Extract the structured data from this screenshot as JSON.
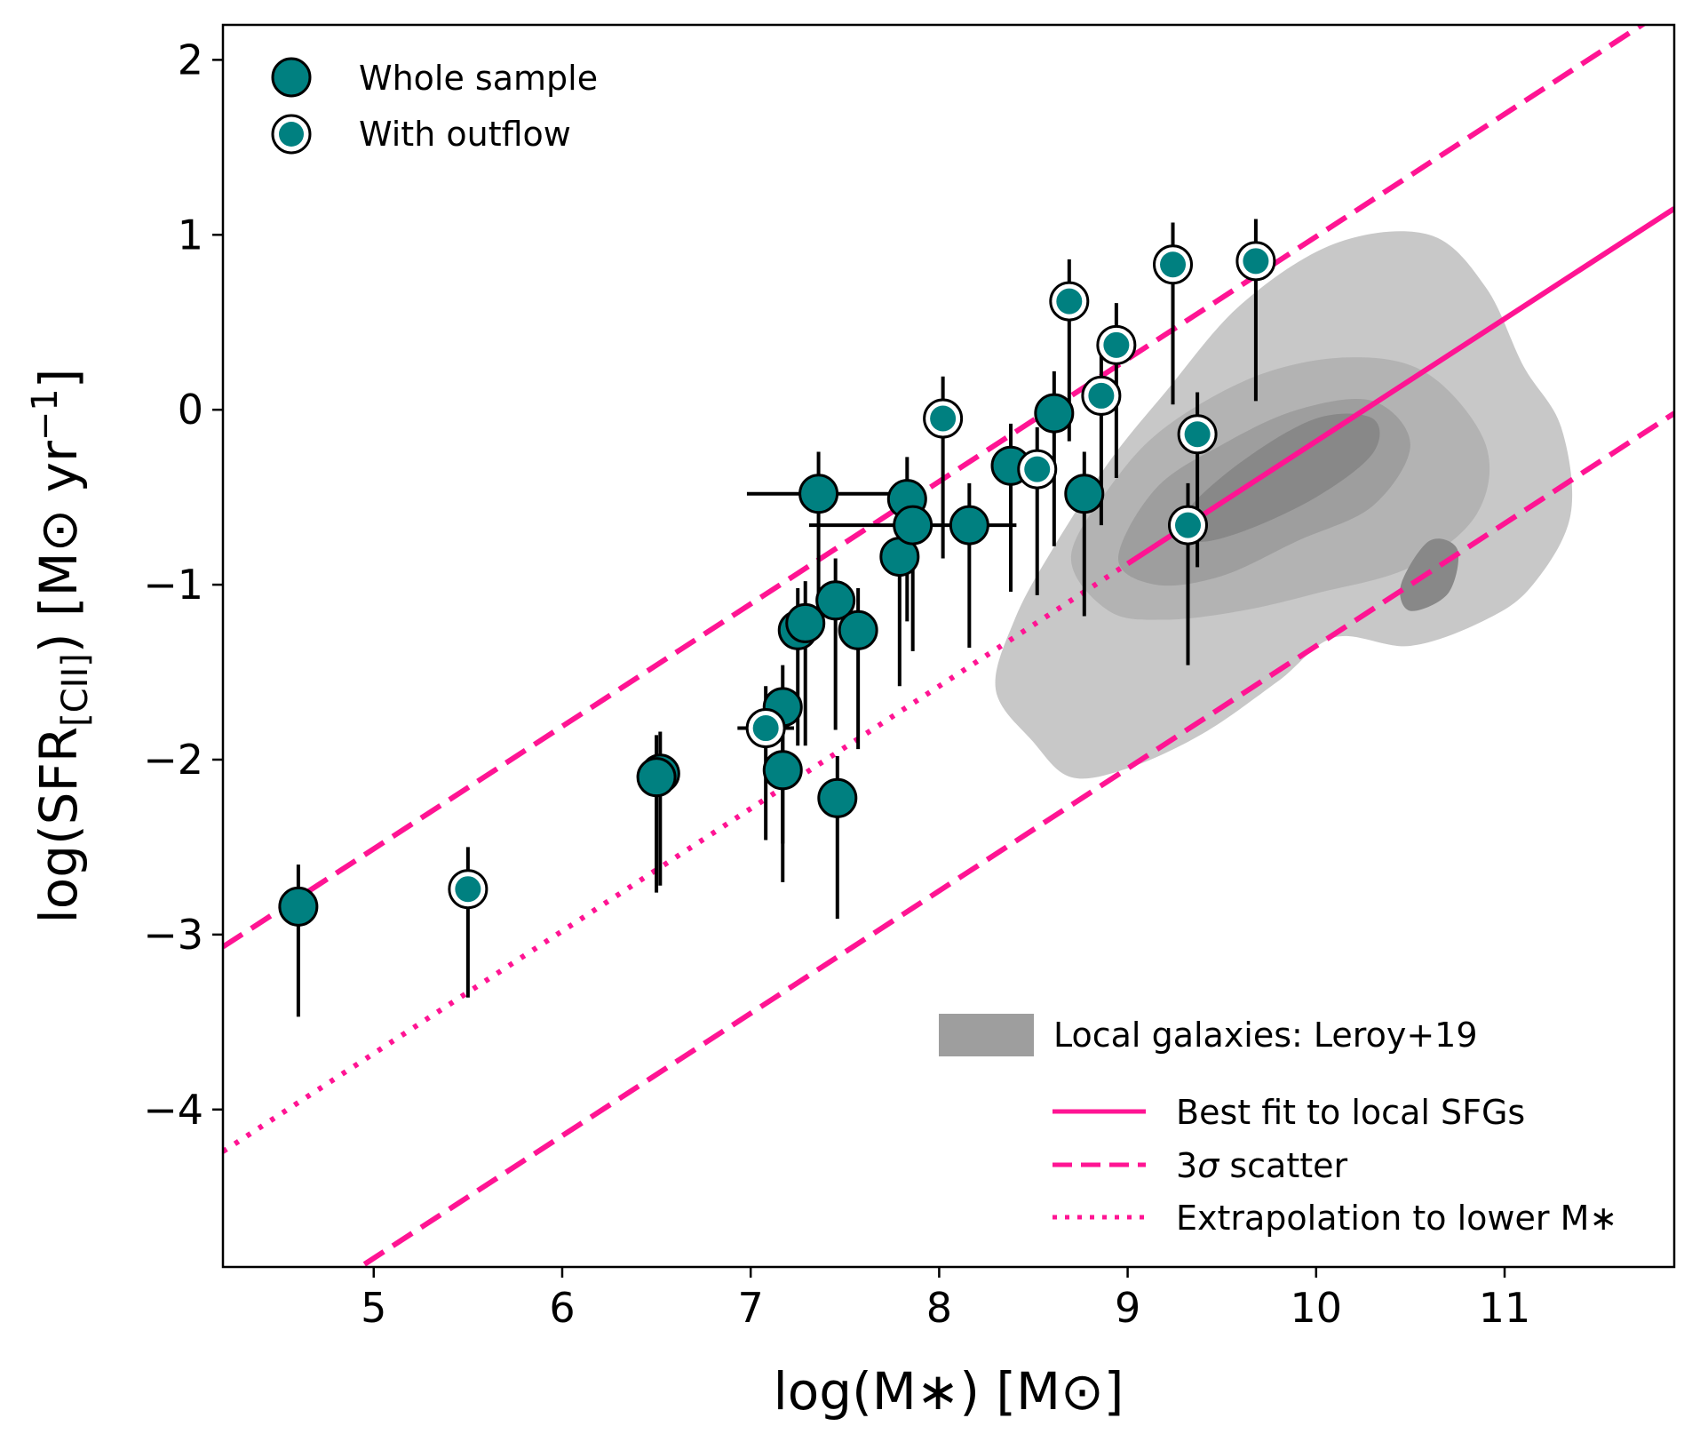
{
  "chart_data": {
    "type": "scatter",
    "xlabel": "log(M∗) [M⊙]",
    "ylabel": "log(SFR[CII]) [M⊙ yr−1]",
    "ylabel_parts": {
      "prefix": "log(SFR",
      "subscript": "[CII]",
      "suffix": ") [M⊙ yr",
      "superscript": "−1",
      "close": "]"
    },
    "xlim": [
      4.2,
      11.9
    ],
    "ylim": [
      -4.9,
      2.2
    ],
    "xticks": [
      {
        "value": 5,
        "label": "5"
      },
      {
        "value": 6,
        "label": "6"
      },
      {
        "value": 7,
        "label": "7"
      },
      {
        "value": 8,
        "label": "8"
      },
      {
        "value": 9,
        "label": "9"
      },
      {
        "value": 10,
        "label": "10"
      },
      {
        "value": 11,
        "label": "11"
      }
    ],
    "yticks": [
      {
        "value": 2,
        "label": "2"
      },
      {
        "value": 1,
        "label": "1"
      },
      {
        "value": 0,
        "label": "0"
      },
      {
        "value": -1,
        "label": "−1"
      },
      {
        "value": -2,
        "label": "−2"
      },
      {
        "value": -3,
        "label": "−3"
      },
      {
        "value": -4,
        "label": "−4"
      }
    ],
    "colors": {
      "marker": "#008080",
      "edge": "#000000",
      "line": "#ff1493",
      "kde": [
        "#c8c8c8",
        "#b3b3b3",
        "#9e9e9e",
        "#888888"
      ]
    },
    "relations": {
      "best_fit": {
        "slope": 0.7,
        "intercept": -7.18,
        "x_start": 9.0,
        "x_end": 11.9
      },
      "extrapolation_x": [
        4.2,
        9.0
      ],
      "scatter_offset": 1.17
    },
    "series": [
      {
        "name": "Whole sample",
        "outflow": false,
        "points": [
          {
            "x": 4.6,
            "y": -2.84,
            "yerr_lo": 0.63,
            "yerr_hi": 0.24
          },
          {
            "x": 6.52,
            "y": -2.08,
            "yerr_lo": 0.64,
            "yerr_hi": 0.24
          },
          {
            "x": 6.5,
            "y": -2.1,
            "yerr_lo": 0.66,
            "yerr_hi": 0.24
          },
          {
            "x": 7.17,
            "y": -1.7,
            "yerr_lo": 0.78,
            "yerr_hi": 0.24
          },
          {
            "x": 7.17,
            "y": -2.06,
            "yerr_lo": 0.64,
            "yerr_hi": 0.24
          },
          {
            "x": 7.25,
            "y": -1.26,
            "yerr_lo": 0.66,
            "yerr_hi": 0.24
          },
          {
            "x": 7.29,
            "y": -1.22,
            "yerr_lo": 0.7,
            "yerr_hi": 0.24
          },
          {
            "x": 7.36,
            "y": -0.48,
            "yerr_lo": 0.8,
            "yerr_hi": 0.24,
            "xerr": 0.38
          },
          {
            "x": 7.45,
            "y": -1.09,
            "yerr_lo": 0.74,
            "yerr_hi": 0.24
          },
          {
            "x": 7.46,
            "y": -2.22,
            "yerr_lo": 0.69,
            "yerr_hi": 0.24
          },
          {
            "x": 7.57,
            "y": -1.26,
            "yerr_lo": 0.68,
            "yerr_hi": 0.24
          },
          {
            "x": 7.79,
            "y": -0.84,
            "yerr_lo": 0.74,
            "yerr_hi": 0.24
          },
          {
            "x": 7.83,
            "y": -0.51,
            "yerr_lo": 0.7,
            "yerr_hi": 0.24
          },
          {
            "x": 7.86,
            "y": -0.66,
            "yerr_lo": 0.72,
            "yerr_hi": 0.24,
            "xerr": 0.55
          },
          {
            "x": 8.16,
            "y": -0.66,
            "yerr_lo": 0.7,
            "yerr_hi": 0.24
          },
          {
            "x": 8.38,
            "y": -0.32,
            "yerr_lo": 0.72,
            "yerr_hi": 0.24
          },
          {
            "x": 8.61,
            "y": -0.02,
            "yerr_lo": 0.76,
            "yerr_hi": 0.24
          },
          {
            "x": 8.77,
            "y": -0.48,
            "yerr_lo": 0.7,
            "yerr_hi": 0.24
          }
        ]
      },
      {
        "name": "With outflow",
        "outflow": true,
        "points": [
          {
            "x": 5.5,
            "y": -2.74,
            "yerr_lo": 0.62,
            "yerr_hi": 0.24
          },
          {
            "x": 7.08,
            "y": -1.82,
            "yerr_lo": 0.64,
            "yerr_hi": 0.24,
            "xerr": 0.15
          },
          {
            "x": 8.02,
            "y": -0.05,
            "yerr_lo": 0.8,
            "yerr_hi": 0.24
          },
          {
            "x": 8.52,
            "y": -0.34,
            "yerr_lo": 0.72,
            "yerr_hi": 0.24
          },
          {
            "x": 8.69,
            "y": 0.62,
            "yerr_lo": 0.8,
            "yerr_hi": 0.24
          },
          {
            "x": 8.86,
            "y": 0.08,
            "yerr_lo": 0.74,
            "yerr_hi": 0.24
          },
          {
            "x": 8.94,
            "y": 0.37,
            "yerr_lo": 0.76,
            "yerr_hi": 0.24
          },
          {
            "x": 9.24,
            "y": 0.83,
            "yerr_lo": 0.8,
            "yerr_hi": 0.24
          },
          {
            "x": 9.37,
            "y": -0.14,
            "yerr_lo": 0.76,
            "yerr_hi": 0.24
          },
          {
            "x": 9.32,
            "y": -0.66,
            "yerr_lo": 0.8,
            "yerr_hi": 0.24
          },
          {
            "x": 9.68,
            "y": 0.85,
            "yerr_lo": 0.8,
            "yerr_hi": 0.24
          }
        ]
      }
    ],
    "kde": {
      "name": "Local galaxies: Leroy+19",
      "levels": [
        [
          [
            8.3,
            -1.6
          ],
          [
            8.4,
            -1.2
          ],
          [
            8.6,
            -0.8
          ],
          [
            8.9,
            -0.3
          ],
          [
            9.2,
            0.1
          ],
          [
            9.6,
            0.6
          ],
          [
            10.1,
            0.95
          ],
          [
            10.6,
            1.0
          ],
          [
            10.9,
            0.7
          ],
          [
            11.1,
            0.25
          ],
          [
            11.3,
            -0.1
          ],
          [
            11.35,
            -0.6
          ],
          [
            11.15,
            -1.0
          ],
          [
            10.9,
            -1.2
          ],
          [
            10.5,
            -1.35
          ],
          [
            10.1,
            -1.3
          ],
          [
            9.8,
            -1.55
          ],
          [
            9.4,
            -1.85
          ],
          [
            9.0,
            -2.05
          ],
          [
            8.7,
            -2.1
          ],
          [
            8.5,
            -1.9
          ]
        ],
        [
          [
            8.7,
            -0.85
          ],
          [
            8.9,
            -0.45
          ],
          [
            9.2,
            -0.1
          ],
          [
            9.7,
            0.2
          ],
          [
            10.2,
            0.3
          ],
          [
            10.6,
            0.2
          ],
          [
            10.9,
            -0.2
          ],
          [
            10.85,
            -0.6
          ],
          [
            10.5,
            -0.9
          ],
          [
            10.0,
            -1.05
          ],
          [
            9.6,
            -1.15
          ],
          [
            9.2,
            -1.2
          ],
          [
            8.9,
            -1.15
          ]
        ],
        [
          [
            8.95,
            -0.85
          ],
          [
            9.15,
            -0.45
          ],
          [
            9.5,
            -0.2
          ],
          [
            9.9,
            0.0
          ],
          [
            10.3,
            0.05
          ],
          [
            10.5,
            -0.2
          ],
          [
            10.3,
            -0.55
          ],
          [
            9.9,
            -0.75
          ],
          [
            9.5,
            -0.95
          ],
          [
            9.15,
            -1.0
          ]
        ],
        [
          [
            9.3,
            -0.6
          ],
          [
            9.6,
            -0.3
          ],
          [
            10.0,
            -0.05
          ],
          [
            10.3,
            -0.05
          ],
          [
            10.3,
            -0.25
          ],
          [
            10.0,
            -0.5
          ],
          [
            9.6,
            -0.7
          ],
          [
            9.35,
            -0.75
          ]
        ],
        [
          [
            10.45,
            -1.0
          ],
          [
            10.6,
            -0.75
          ],
          [
            10.75,
            -0.8
          ],
          [
            10.7,
            -1.05
          ],
          [
            10.5,
            -1.15
          ]
        ]
      ]
    },
    "legend": {
      "top_left": [
        {
          "label": "Whole sample",
          "marker": "filled"
        },
        {
          "label": "With outflow",
          "marker": "outlined"
        }
      ],
      "bottom_right": {
        "patch": {
          "label": "Local galaxies: Leroy+19"
        },
        "lines": [
          {
            "label": "Best fit to local SFGs",
            "style": "solid"
          },
          {
            "label_prefix": "3",
            "label_symbol": "σ",
            "label_suffix": " scatter",
            "style": "dashed"
          },
          {
            "label": "Extrapolation to lower M∗",
            "style": "dotted"
          }
        ]
      }
    }
  }
}
